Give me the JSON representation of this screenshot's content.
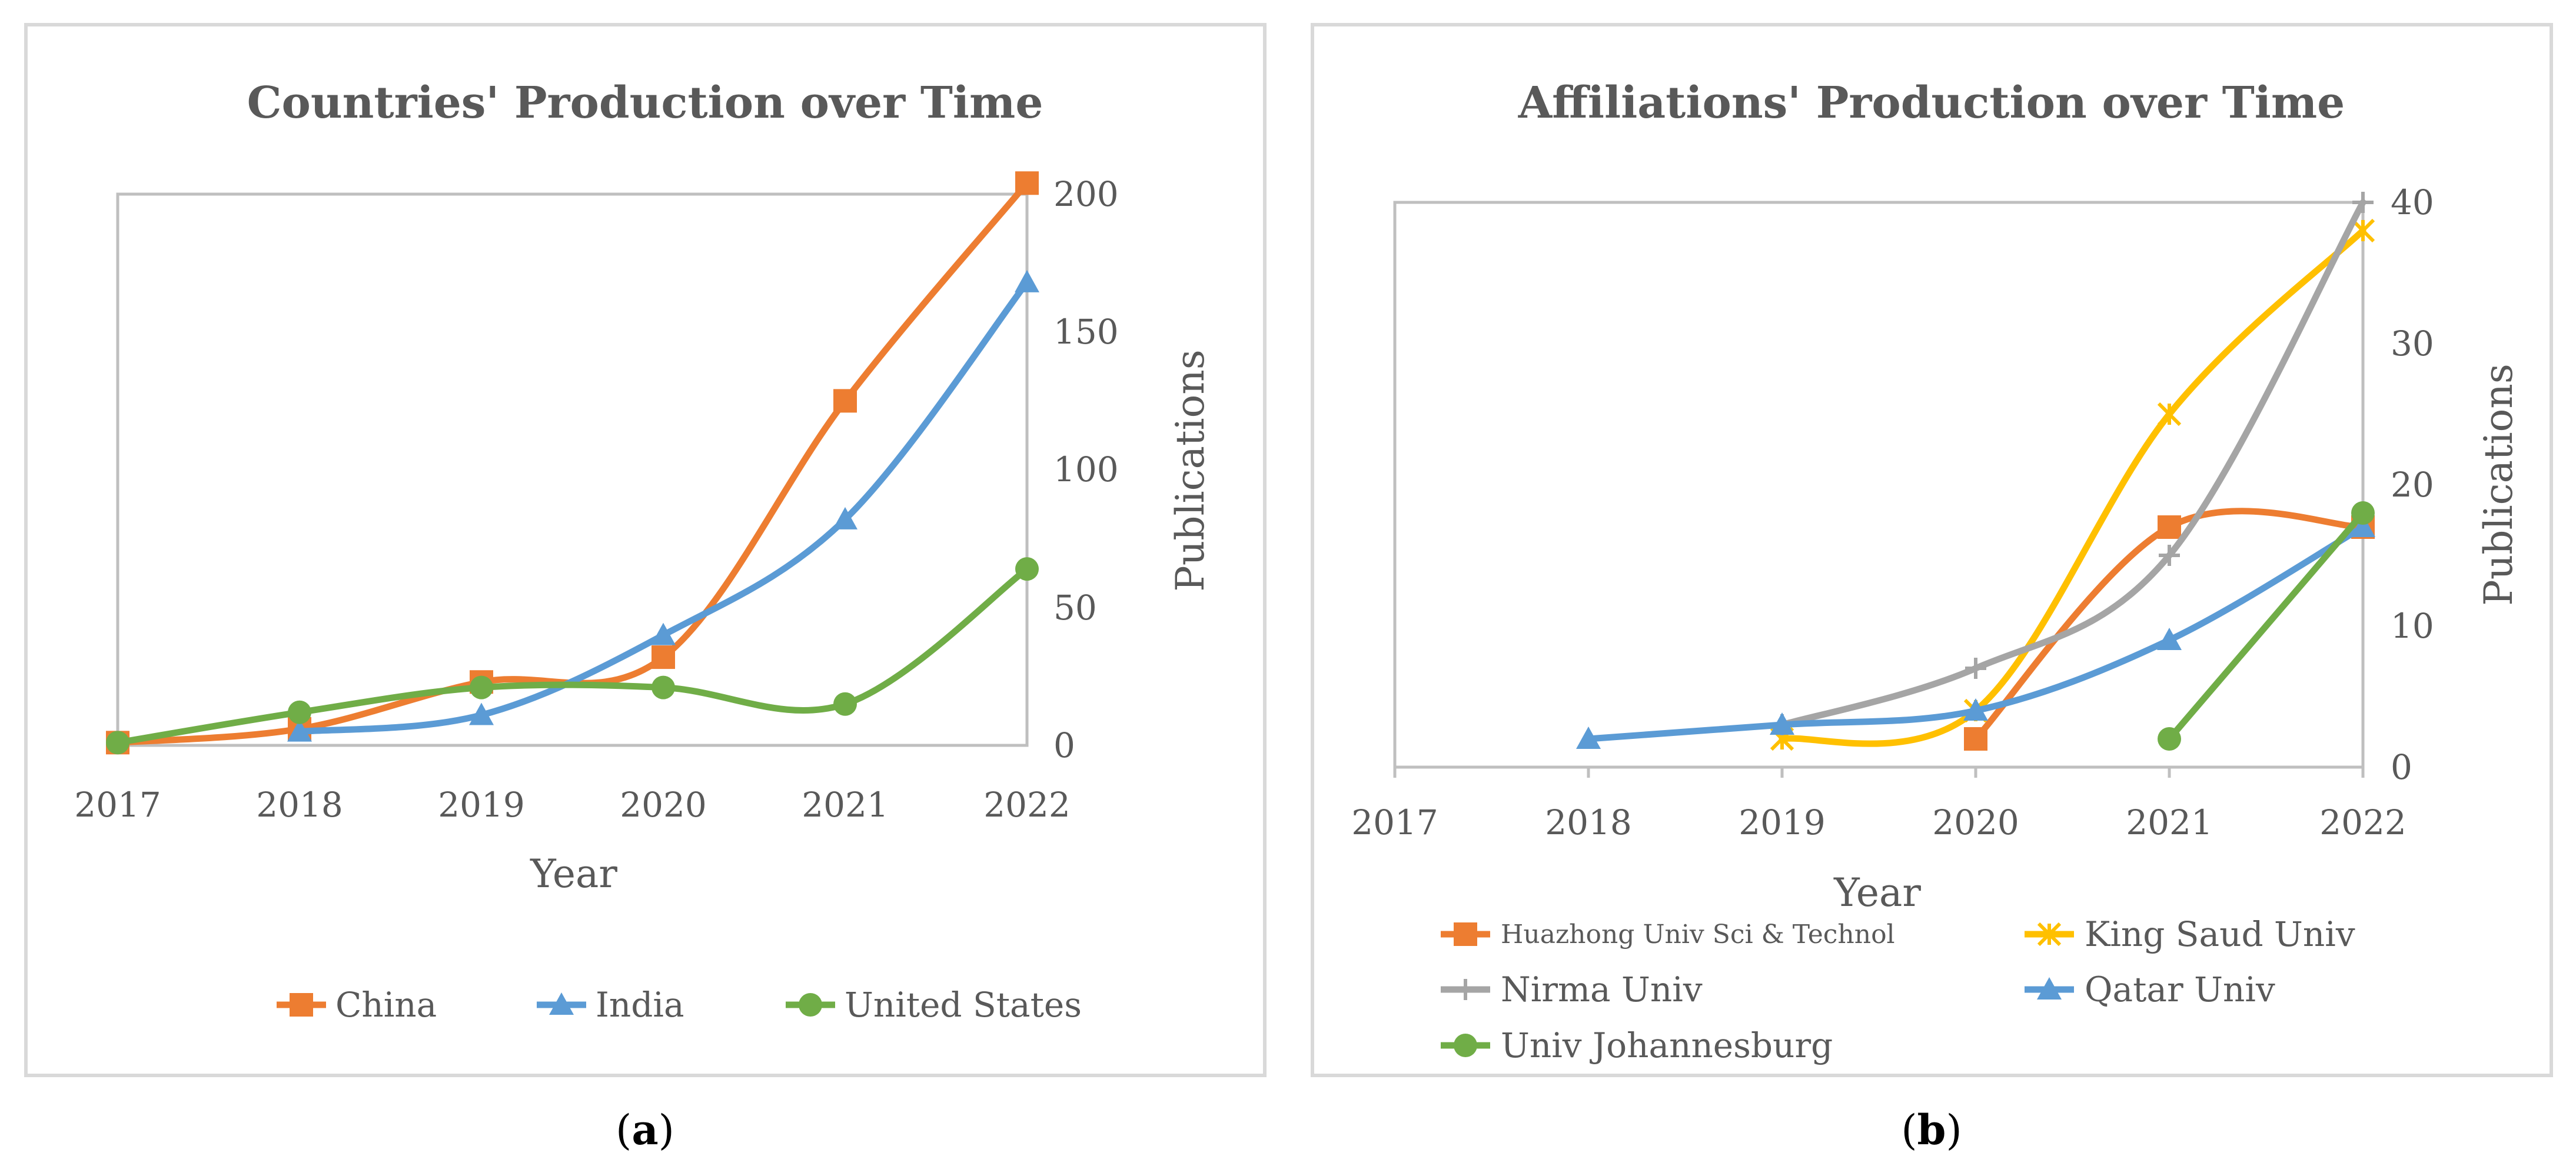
{
  "colors": {
    "orange": "#ed7d31",
    "blue": "#5b9bd5",
    "green": "#70ad47",
    "gray": "#a5a5a5",
    "yellow": "#ffc000"
  },
  "captions": {
    "a": "a",
    "b": "b"
  },
  "chart_data": [
    {
      "id": "a",
      "type": "line",
      "title": "Countries' Production over Time",
      "xlabel": "Year",
      "ylabel": "Publications",
      "x": [
        2017,
        2018,
        2019,
        2020,
        2021,
        2022
      ],
      "x_ticks": [
        "2017",
        "2018",
        "2019",
        "2020",
        "2021",
        "2022"
      ],
      "y_ticks": [
        "0",
        "50",
        "100",
        "150",
        "200"
      ],
      "ylim": [
        0,
        200
      ],
      "y_axis_side": "right",
      "legend_position": "bottom",
      "smooth": true,
      "series": [
        {
          "name": "China",
          "color_key": "orange",
          "marker": "square",
          "values": [
            1,
            6,
            23,
            32,
            125,
            204
          ]
        },
        {
          "name": "India",
          "color_key": "blue",
          "marker": "triangle",
          "values": [
            null,
            5,
            11,
            40,
            82,
            168
          ]
        },
        {
          "name": "United States",
          "color_key": "green",
          "marker": "circle",
          "values": [
            1,
            12,
            21,
            21,
            15,
            64
          ]
        }
      ]
    },
    {
      "id": "b",
      "type": "line",
      "title": "Affiliations' Production over Time",
      "xlabel": "Year",
      "ylabel": "Publications",
      "x": [
        2017,
        2018,
        2019,
        2020,
        2021,
        2022
      ],
      "x_ticks": [
        "2017",
        "2018",
        "2019",
        "2020",
        "2021",
        "2022"
      ],
      "y_ticks": [
        "0",
        "10",
        "20",
        "30",
        "40"
      ],
      "ylim": [
        0,
        40
      ],
      "y_axis_side": "right",
      "legend_position": "bottom",
      "smooth": true,
      "series": [
        {
          "name": "Huazhong Univ Sci & Technol",
          "color_key": "orange",
          "marker": "square",
          "values": [
            null,
            null,
            null,
            2,
            17,
            17
          ]
        },
        {
          "name": "King Saud Univ",
          "color_key": "yellow",
          "marker": "star",
          "values": [
            null,
            null,
            2,
            4,
            25,
            38
          ]
        },
        {
          "name": "Nirma Univ",
          "color_key": "gray",
          "marker": "plus",
          "values": [
            null,
            null,
            3,
            7,
            15,
            40
          ]
        },
        {
          "name": "Qatar Univ",
          "color_key": "blue",
          "marker": "triangle",
          "values": [
            null,
            2,
            3,
            4,
            9,
            17
          ]
        },
        {
          "name": "Univ Johannesburg",
          "color_key": "green",
          "marker": "circle",
          "values": [
            null,
            null,
            null,
            null,
            2,
            18
          ]
        }
      ]
    }
  ]
}
